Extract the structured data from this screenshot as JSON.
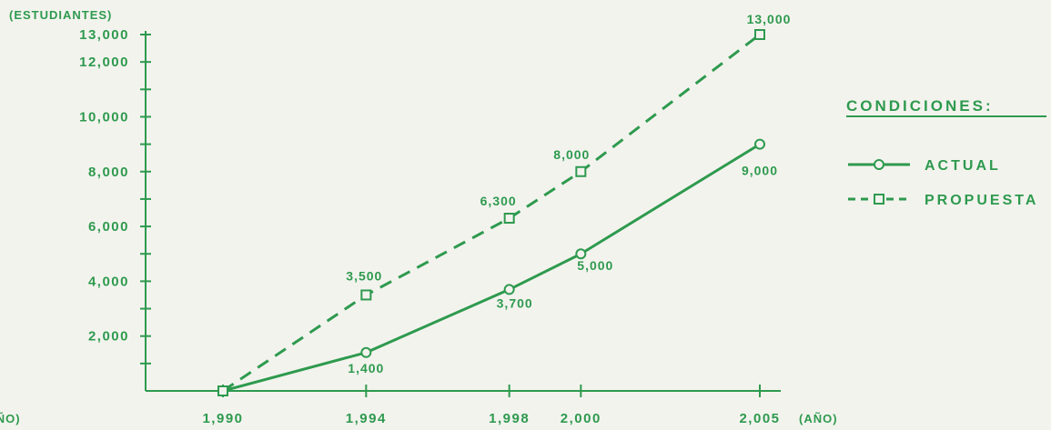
{
  "chart_data": {
    "type": "line",
    "ylabel": "(ESTUDIANTES)",
    "xlabel": "(AÑO)",
    "x_left_label": "(AÑO)",
    "x": [
      1990,
      1994,
      1998,
      2000,
      2005
    ],
    "x_tick_labels": [
      "1,990",
      "1,994",
      "1,998",
      "2,000",
      "2,005"
    ],
    "y_tick_values": [
      2000,
      4000,
      6000,
      8000,
      10000,
      12000,
      13000
    ],
    "y_tick_labels": [
      "2,000",
      "4,000",
      "6,000",
      "8,000",
      "10,000",
      "12,000",
      "13,000"
    ],
    "ylim": [
      0,
      13000
    ],
    "xlim": [
      1990,
      2005
    ],
    "legend_title": "CONDICIONES:",
    "legend_position": "right",
    "color": "#2e9a4e",
    "series": [
      {
        "name": "ACTUAL",
        "style": "solid",
        "marker": "circle",
        "x": [
          1990,
          1994,
          1998,
          2000,
          2005
        ],
        "values": [
          0,
          1400,
          3700,
          5000,
          9000
        ],
        "labels": [
          "",
          "1,400",
          "3,700",
          "5,000",
          "9,000"
        ]
      },
      {
        "name": "PROPUESTA",
        "style": "dashed",
        "marker": "square",
        "x": [
          1990,
          1994,
          1998,
          2000,
          2005
        ],
        "values": [
          0,
          3500,
          6300,
          8000,
          13000
        ],
        "labels": [
          "",
          "3,500",
          "6,300",
          "8,000",
          "13,000"
        ]
      }
    ]
  }
}
